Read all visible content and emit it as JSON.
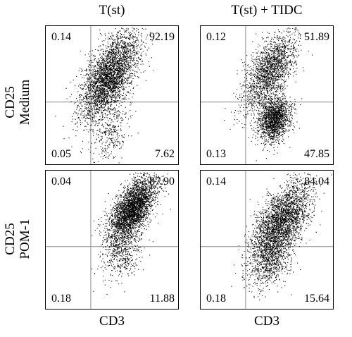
{
  "columns": [
    "T(st)",
    "T(st) + TIDC"
  ],
  "rows": [
    {
      "line1": "CD25",
      "line2": "Medium"
    },
    {
      "line1": "CD25",
      "line2": "POM-1"
    }
  ],
  "x_axis_label": "CD3",
  "chart_data": [
    {
      "type": "scatter",
      "column": "T(st)",
      "row": "Medium",
      "quadrants": {
        "top_left": "0.14",
        "top_right": "92.19",
        "bottom_left": "0.05",
        "bottom_right": "7.62"
      },
      "xlabel": "CD3",
      "ylabel": "CD25",
      "clusters": [
        {
          "cx": 0.48,
          "cy": 0.64,
          "sx": 0.11,
          "sy": 0.16,
          "rho": 0.6,
          "weight": 0.92
        },
        {
          "cx": 0.5,
          "cy": 0.22,
          "sx": 0.07,
          "sy": 0.1,
          "rho": 0.3,
          "weight": 0.08
        }
      ],
      "n_points": 3600,
      "gate_x": 0.34,
      "gate_y": 0.45
    },
    {
      "type": "scatter",
      "column": "T(st) + TIDC",
      "row": "Medium",
      "quadrants": {
        "top_left": "0.12",
        "top_right": "51.89",
        "bottom_left": "0.13",
        "bottom_right": "47.85"
      },
      "xlabel": "CD3",
      "ylabel": "CD25",
      "clusters": [
        {
          "cx": 0.52,
          "cy": 0.68,
          "sx": 0.1,
          "sy": 0.14,
          "rho": 0.6,
          "weight": 0.52
        },
        {
          "cx": 0.55,
          "cy": 0.33,
          "sx": 0.06,
          "sy": 0.08,
          "rho": 0.2,
          "weight": 0.48
        }
      ],
      "n_points": 3600,
      "gate_x": 0.34,
      "gate_y": 0.45
    },
    {
      "type": "scatter",
      "column": "T(st)",
      "row": "POM-1",
      "quadrants": {
        "top_left": "0.04",
        "top_right": "87.90",
        "bottom_left": "0.18",
        "bottom_right": "11.88"
      },
      "xlabel": "CD3",
      "ylabel": "CD25",
      "clusters": [
        {
          "cx": 0.65,
          "cy": 0.72,
          "sx": 0.09,
          "sy": 0.12,
          "rho": 0.6,
          "weight": 0.88
        },
        {
          "cx": 0.57,
          "cy": 0.4,
          "sx": 0.07,
          "sy": 0.09,
          "rho": 0.3,
          "weight": 0.12
        }
      ],
      "n_points": 3600,
      "gate_x": 0.34,
      "gate_y": 0.45
    },
    {
      "type": "scatter",
      "column": "T(st) + TIDC",
      "row": "POM-1",
      "quadrants": {
        "top_left": "0.14",
        "top_right": "84.04",
        "bottom_left": "0.18",
        "bottom_right": "15.64"
      },
      "xlabel": "CD3",
      "ylabel": "CD25",
      "clusters": [
        {
          "cx": 0.6,
          "cy": 0.62,
          "sx": 0.11,
          "sy": 0.15,
          "rho": 0.6,
          "weight": 0.84
        },
        {
          "cx": 0.52,
          "cy": 0.33,
          "sx": 0.08,
          "sy": 0.09,
          "rho": 0.3,
          "weight": 0.16
        }
      ],
      "n_points": 3600,
      "gate_x": 0.34,
      "gate_y": 0.45
    }
  ]
}
